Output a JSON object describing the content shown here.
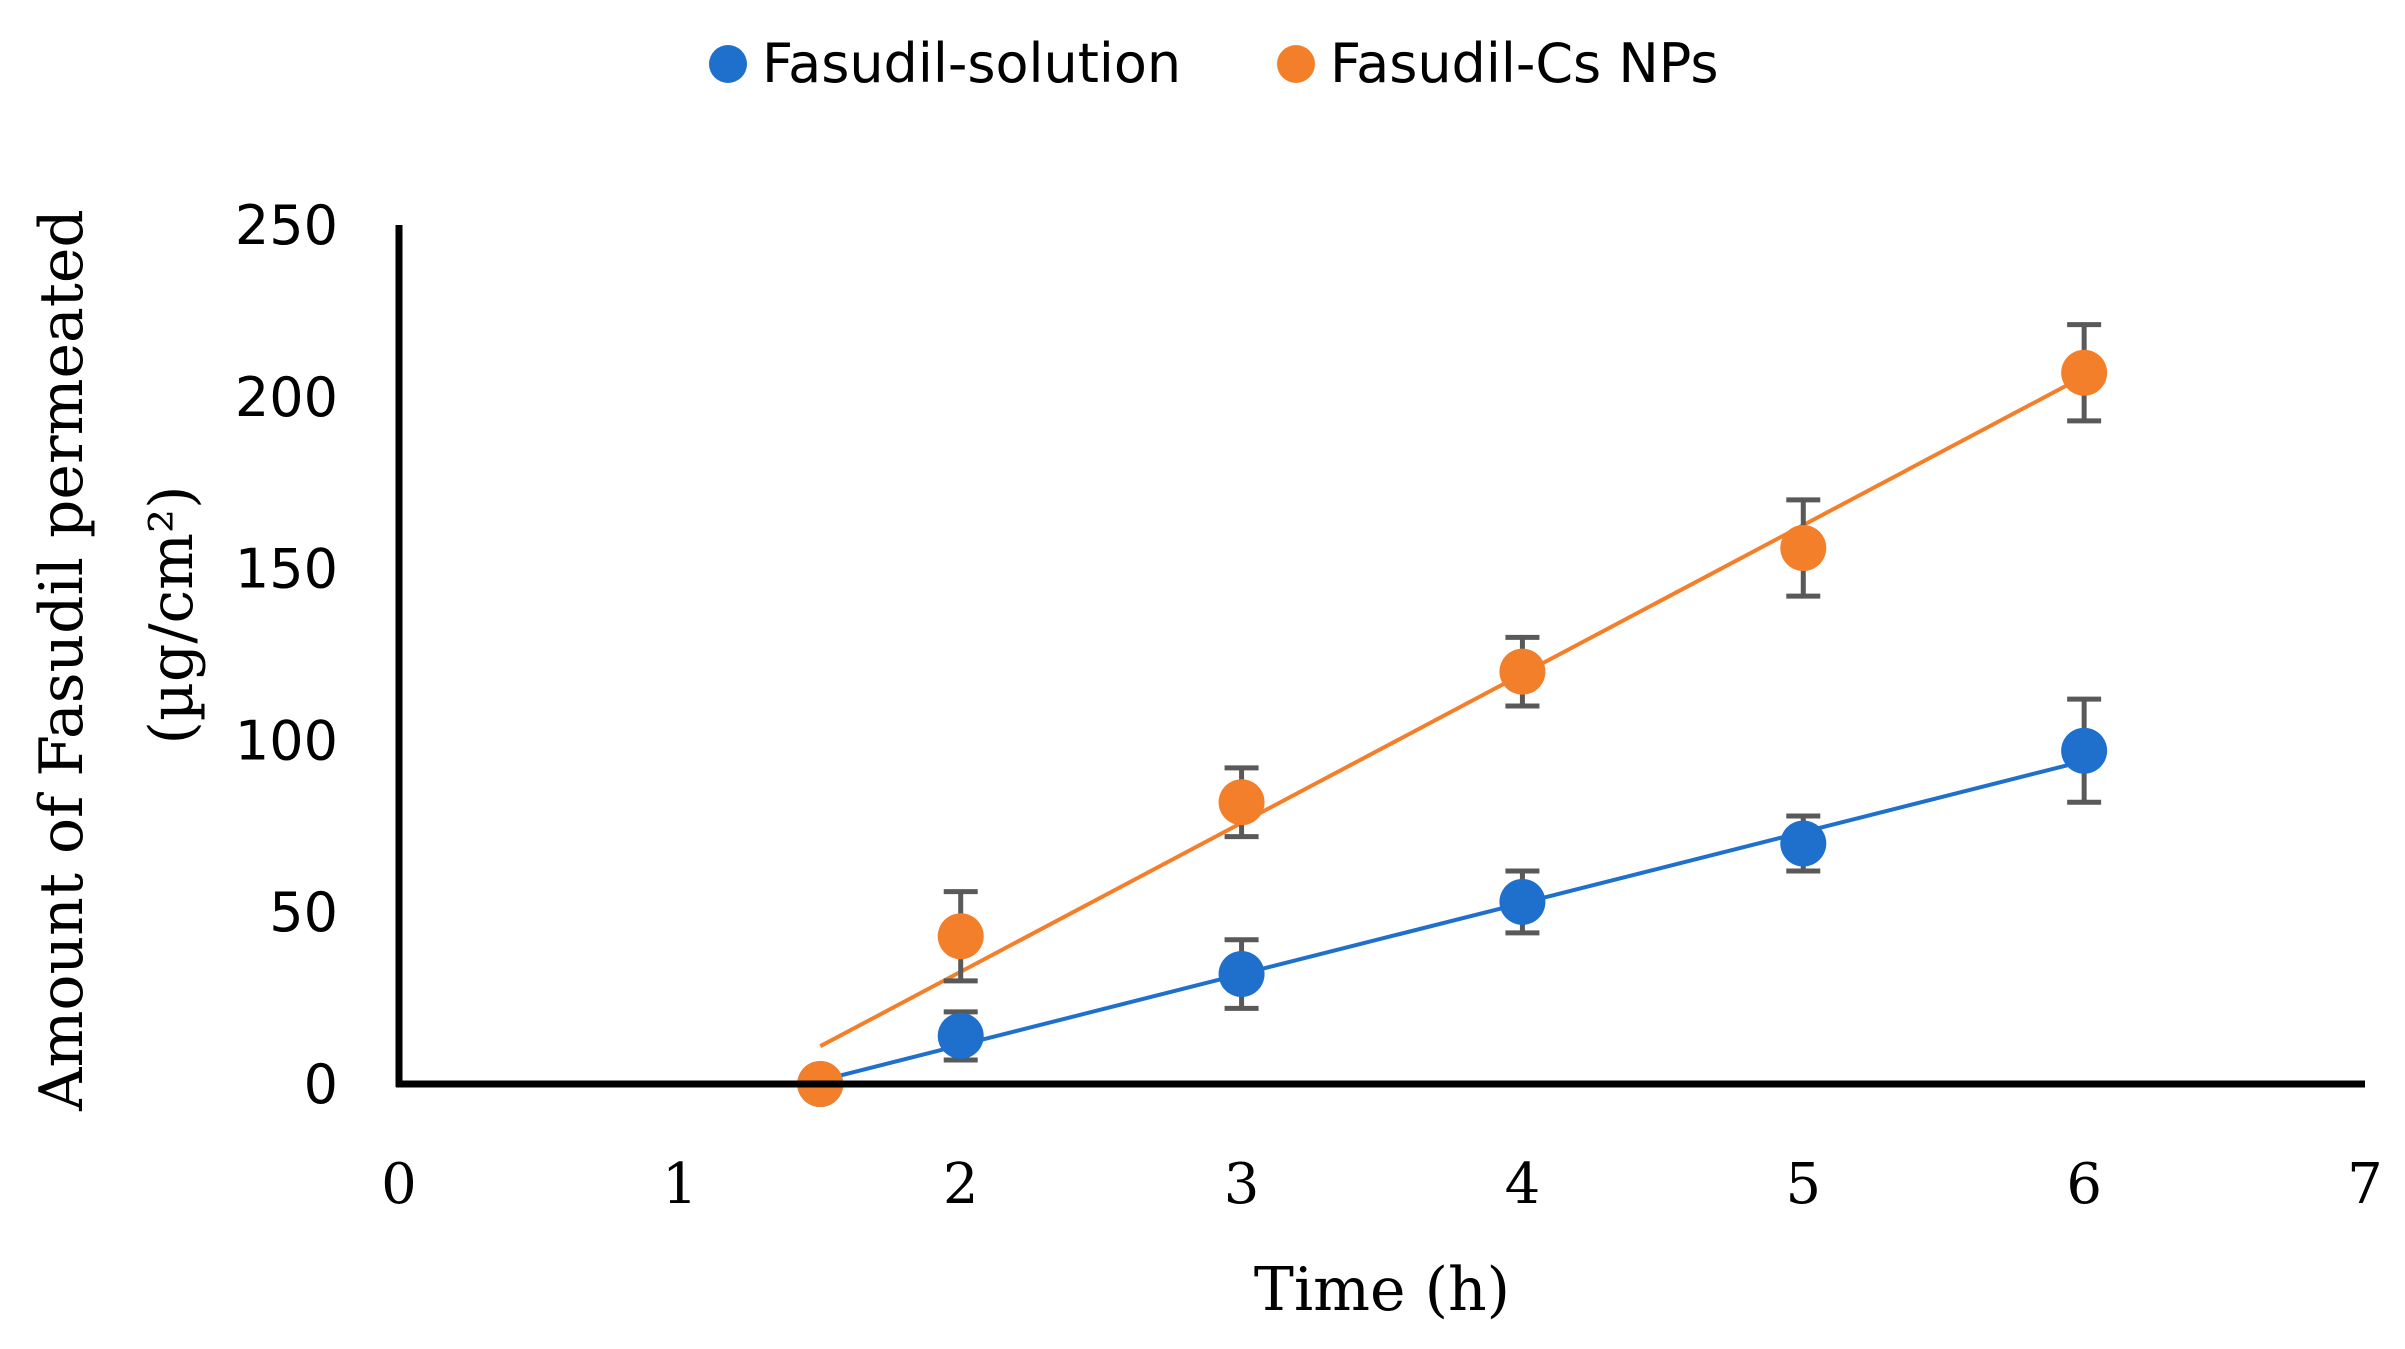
{
  "chart_data": {
    "type": "scatter",
    "title": "",
    "xlabel": "Time (h)",
    "ylabel": "Amount of Fasudil permeated",
    "ylabel_unit": "(µg/cm²)",
    "xlim": [
      0,
      7
    ],
    "ylim": [
      0,
      250
    ],
    "x_ticks": [
      "0",
      "1",
      "2",
      "3",
      "4",
      "5",
      "6",
      "7"
    ],
    "y_ticks": [
      "0",
      "50",
      "100",
      "150",
      "200",
      "250"
    ],
    "grid": false,
    "legend_position": "top-center",
    "series": [
      {
        "name": "Fasudil-solution",
        "color": "#1f6fcc",
        "x": [
          1.5,
          2,
          3,
          4,
          5,
          6
        ],
        "y": [
          0,
          14,
          32,
          53,
          70,
          97
        ],
        "error": [
          0,
          7,
          10,
          9,
          8,
          15
        ],
        "trendline": {
          "x": [
            1.5,
            6
          ],
          "y": [
            1,
            94
          ]
        }
      },
      {
        "name": "Fasudil-Cs NPs",
        "color": "#f47f2a",
        "x": [
          1.5,
          2,
          3,
          4,
          5,
          6
        ],
        "y": [
          0,
          43,
          82,
          120,
          156,
          207
        ],
        "error": [
          0,
          13,
          10,
          10,
          14,
          14
        ],
        "trendline": {
          "x": [
            1.5,
            6
          ],
          "y": [
            11,
            206
          ]
        }
      }
    ]
  }
}
